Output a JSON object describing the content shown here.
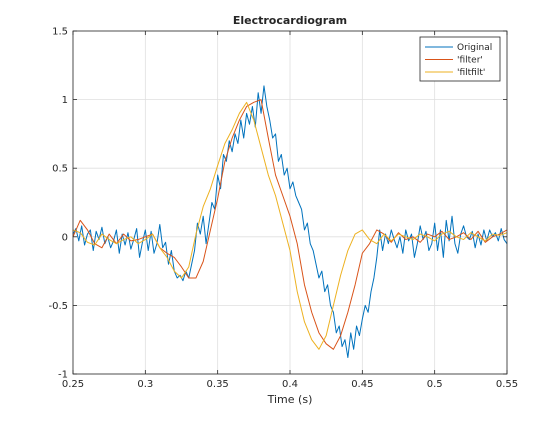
{
  "chart_data": {
    "type": "line",
    "title": "Electrocardiogram",
    "xlabel": "Time (s)",
    "ylabel": "",
    "xlim": [
      0.25,
      0.55
    ],
    "ylim": [
      -1,
      1.5
    ],
    "xticks": [
      0.25,
      0.3,
      0.35,
      0.4,
      0.45,
      0.5,
      0.55
    ],
    "xtick_labels": [
      "0.25",
      "0.3",
      "0.35",
      "0.4",
      "0.45",
      "0.5",
      "0.55"
    ],
    "yticks": [
      -1,
      -0.5,
      0,
      0.5,
      1,
      1.5
    ],
    "ytick_labels": [
      "-1",
      "-0.5",
      "0",
      "0.5",
      "1",
      "1.5"
    ],
    "grid": true,
    "legend_position": "top-right",
    "series": [
      {
        "name": "Original",
        "color": "#0072bd",
        "x": [
          0.25,
          0.252,
          0.254,
          0.256,
          0.258,
          0.26,
          0.262,
          0.264,
          0.266,
          0.268,
          0.27,
          0.272,
          0.274,
          0.276,
          0.278,
          0.28,
          0.282,
          0.284,
          0.286,
          0.288,
          0.29,
          0.292,
          0.294,
          0.296,
          0.298,
          0.3,
          0.302,
          0.304,
          0.306,
          0.308,
          0.31,
          0.312,
          0.314,
          0.316,
          0.318,
          0.32,
          0.322,
          0.324,
          0.326,
          0.328,
          0.33,
          0.332,
          0.334,
          0.336,
          0.338,
          0.34,
          0.342,
          0.344,
          0.346,
          0.348,
          0.35,
          0.352,
          0.354,
          0.356,
          0.358,
          0.36,
          0.362,
          0.364,
          0.366,
          0.368,
          0.37,
          0.372,
          0.374,
          0.376,
          0.378,
          0.38,
          0.382,
          0.384,
          0.386,
          0.388,
          0.39,
          0.392,
          0.394,
          0.396,
          0.398,
          0.4,
          0.402,
          0.404,
          0.406,
          0.408,
          0.41,
          0.412,
          0.414,
          0.416,
          0.418,
          0.42,
          0.422,
          0.424,
          0.426,
          0.428,
          0.43,
          0.432,
          0.434,
          0.436,
          0.438,
          0.44,
          0.442,
          0.444,
          0.446,
          0.448,
          0.45,
          0.452,
          0.454,
          0.456,
          0.458,
          0.46,
          0.462,
          0.464,
          0.466,
          0.468,
          0.47,
          0.472,
          0.474,
          0.476,
          0.478,
          0.48,
          0.482,
          0.484,
          0.486,
          0.488,
          0.49,
          0.492,
          0.494,
          0.496,
          0.498,
          0.5,
          0.502,
          0.504,
          0.506,
          0.508,
          0.51,
          0.512,
          0.514,
          0.516,
          0.518,
          0.52,
          0.522,
          0.524,
          0.526,
          0.528,
          0.53,
          0.532,
          0.534,
          0.536,
          0.538,
          0.54,
          0.542,
          0.544,
          0.546,
          0.548,
          0.55
        ],
        "y": [
          0.02,
          0.06,
          -0.03,
          0.08,
          -0.06,
          0.02,
          0.05,
          -0.1,
          0.04,
          -0.02,
          0.07,
          -0.05,
          0.0,
          -0.08,
          -0.03,
          0.05,
          -0.12,
          0.02,
          -0.06,
          0.03,
          -0.09,
          -0.02,
          0.06,
          -0.15,
          -0.04,
          0.05,
          -0.1,
          0.04,
          -0.12,
          -0.05,
          0.09,
          -0.08,
          -0.04,
          -0.2,
          -0.1,
          -0.25,
          -0.3,
          -0.28,
          -0.32,
          -0.25,
          -0.3,
          -0.2,
          -0.1,
          0.1,
          0.02,
          0.15,
          -0.05,
          0.1,
          0.25,
          0.2,
          0.45,
          0.35,
          0.6,
          0.55,
          0.7,
          0.62,
          0.75,
          0.68,
          0.85,
          0.72,
          0.9,
          0.82,
          0.95,
          0.8,
          1.05,
          0.9,
          1.1,
          0.95,
          0.85,
          0.72,
          0.75,
          0.55,
          0.6,
          0.45,
          0.5,
          0.35,
          0.4,
          0.3,
          0.25,
          0.2,
          0.05,
          0.1,
          -0.05,
          -0.1,
          -0.2,
          -0.3,
          -0.25,
          -0.4,
          -0.35,
          -0.5,
          -0.55,
          -0.7,
          -0.65,
          -0.8,
          -0.75,
          -0.88,
          -0.7,
          -0.82,
          -0.65,
          -0.72,
          -0.6,
          -0.5,
          -0.55,
          -0.4,
          -0.3,
          -0.15,
          0.05,
          -0.1,
          0.02,
          -0.05,
          0.05,
          -0.02,
          -0.08,
          0.0,
          -0.12,
          0.05,
          -0.03,
          0.02,
          -0.15,
          -0.05,
          0.08,
          -0.02,
          0.04,
          -0.1,
          -0.05,
          0.1,
          -0.1,
          0.05,
          -0.15,
          0.12,
          -0.03,
          0.15,
          -0.05,
          -0.12,
          0.02,
          0.08,
          0.0,
          -0.02,
          0.04,
          -0.08,
          0.02,
          -0.06,
          0.05,
          -0.03,
          0.05,
          0.0,
          0.03,
          -0.03,
          0.06,
          -0.02,
          -0.05
        ],
        "values": [
          0.02,
          0.06,
          -0.03,
          0.08,
          -0.06,
          0.02,
          0.05,
          -0.1,
          0.04,
          -0.02,
          0.07,
          -0.05,
          0.0,
          -0.08,
          -0.03,
          0.05,
          -0.12,
          0.02,
          -0.06,
          0.03,
          -0.09,
          -0.02,
          0.06,
          -0.15,
          -0.04,
          0.05,
          -0.1,
          0.04,
          -0.12,
          -0.05,
          0.09,
          -0.08,
          -0.04,
          -0.2,
          -0.1,
          -0.25,
          -0.3,
          -0.28,
          -0.32,
          -0.25,
          -0.3,
          -0.2,
          -0.1,
          0.1,
          0.02,
          0.15,
          -0.05,
          0.1,
          0.25,
          0.2,
          0.45,
          0.35,
          0.6,
          0.55,
          0.7,
          0.62,
          0.75,
          0.68,
          0.85,
          0.72,
          0.9,
          0.82,
          0.95,
          0.8,
          1.05,
          0.9,
          1.1,
          0.95,
          0.85,
          0.72,
          0.75,
          0.55,
          0.6,
          0.45,
          0.5,
          0.35,
          0.4,
          0.3,
          0.25,
          0.2,
          0.05,
          0.1,
          -0.05,
          -0.1,
          -0.2,
          -0.3,
          -0.25,
          -0.4,
          -0.35,
          -0.5,
          -0.55,
          -0.7,
          -0.65,
          -0.8,
          -0.75,
          -0.88,
          -0.7,
          -0.82,
          -0.65,
          -0.72,
          -0.6,
          -0.5,
          -0.55,
          -0.4,
          -0.3,
          -0.15,
          0.05,
          -0.1,
          0.02,
          -0.05,
          0.05,
          -0.02,
          -0.08,
          0.0,
          -0.12,
          0.05,
          -0.03,
          0.02,
          -0.15,
          -0.05,
          0.08,
          -0.02,
          0.04,
          -0.1,
          -0.05,
          0.1,
          -0.1,
          0.05,
          -0.15,
          0.12,
          -0.03,
          0.15,
          -0.05,
          -0.12,
          0.02,
          0.08,
          0.0,
          -0.02,
          0.04,
          -0.08,
          0.02,
          -0.06,
          0.05,
          -0.03,
          0.05,
          0.0,
          0.03,
          -0.03,
          0.06,
          -0.02,
          -0.05
        ]
      },
      {
        "name": "'filter'",
        "color": "#d95319",
        "x": [
          0.25,
          0.255,
          0.26,
          0.265,
          0.27,
          0.275,
          0.28,
          0.285,
          0.29,
          0.295,
          0.3,
          0.305,
          0.31,
          0.315,
          0.32,
          0.325,
          0.33,
          0.335,
          0.34,
          0.345,
          0.35,
          0.355,
          0.36,
          0.365,
          0.37,
          0.375,
          0.38,
          0.385,
          0.39,
          0.395,
          0.4,
          0.405,
          0.41,
          0.415,
          0.42,
          0.425,
          0.43,
          0.435,
          0.44,
          0.445,
          0.45,
          0.455,
          0.46,
          0.465,
          0.47,
          0.475,
          0.48,
          0.485,
          0.49,
          0.495,
          0.5,
          0.505,
          0.51,
          0.515,
          0.52,
          0.525,
          0.53,
          0.535,
          0.54,
          0.545,
          0.55
        ],
        "y": [
          0.0,
          0.12,
          0.05,
          -0.05,
          -0.08,
          0.02,
          -0.05,
          0.02,
          -0.03,
          -0.02,
          0.0,
          0.02,
          -0.08,
          -0.12,
          -0.15,
          -0.22,
          -0.3,
          -0.3,
          -0.18,
          0.05,
          0.28,
          0.55,
          0.72,
          0.85,
          0.95,
          0.98,
          1.0,
          0.72,
          0.45,
          0.3,
          0.15,
          -0.05,
          -0.35,
          -0.55,
          -0.7,
          -0.78,
          -0.82,
          -0.72,
          -0.55,
          -0.35,
          -0.12,
          -0.05,
          0.05,
          0.02,
          -0.04,
          0.03,
          -0.02,
          0.0,
          -0.04,
          0.02,
          0.0,
          0.04,
          -0.02,
          0.0,
          0.03,
          -0.02,
          0.04,
          -0.04,
          0.0,
          0.02,
          0.05
        ],
        "values": [
          0.0,
          0.12,
          0.05,
          -0.05,
          -0.08,
          0.02,
          -0.05,
          0.02,
          -0.03,
          -0.02,
          0.0,
          0.02,
          -0.08,
          -0.12,
          -0.15,
          -0.22,
          -0.3,
          -0.3,
          -0.18,
          0.05,
          0.28,
          0.55,
          0.72,
          0.85,
          0.95,
          0.98,
          1.0,
          0.72,
          0.45,
          0.3,
          0.15,
          -0.05,
          -0.35,
          -0.55,
          -0.7,
          -0.78,
          -0.82,
          -0.72,
          -0.55,
          -0.35,
          -0.12,
          -0.05,
          0.05,
          0.02,
          -0.04,
          0.03,
          -0.02,
          0.0,
          -0.04,
          0.02,
          0.0,
          0.04,
          -0.02,
          0.0,
          0.03,
          -0.02,
          0.04,
          -0.04,
          0.0,
          0.02,
          0.05
        ]
      },
      {
        "name": "'filtfilt'",
        "color": "#edb120",
        "x": [
          0.25,
          0.255,
          0.26,
          0.265,
          0.27,
          0.275,
          0.28,
          0.285,
          0.29,
          0.295,
          0.3,
          0.305,
          0.31,
          0.315,
          0.32,
          0.325,
          0.33,
          0.335,
          0.34,
          0.345,
          0.35,
          0.355,
          0.36,
          0.365,
          0.37,
          0.375,
          0.38,
          0.385,
          0.39,
          0.395,
          0.4,
          0.405,
          0.41,
          0.415,
          0.42,
          0.425,
          0.43,
          0.435,
          0.44,
          0.445,
          0.45,
          0.455,
          0.46,
          0.465,
          0.47,
          0.475,
          0.48,
          0.485,
          0.49,
          0.495,
          0.5,
          0.505,
          0.51,
          0.515,
          0.52,
          0.525,
          0.53,
          0.535,
          0.54,
          0.545,
          0.55
        ],
        "y": [
          0.05,
          0.03,
          -0.04,
          -0.06,
          0.02,
          -0.02,
          -0.05,
          -0.02,
          0.0,
          -0.05,
          -0.02,
          0.02,
          -0.08,
          -0.15,
          -0.25,
          -0.3,
          -0.22,
          0.02,
          0.22,
          0.35,
          0.52,
          0.68,
          0.78,
          0.9,
          0.98,
          0.85,
          0.65,
          0.45,
          0.3,
          0.1,
          -0.1,
          -0.4,
          -0.62,
          -0.75,
          -0.82,
          -0.72,
          -0.5,
          -0.28,
          -0.1,
          0.02,
          0.05,
          -0.02,
          -0.05,
          0.02,
          -0.03,
          0.02,
          0.0,
          -0.02,
          0.02,
          0.0,
          -0.03,
          0.02,
          0.04,
          0.0,
          -0.02,
          0.03,
          0.0,
          -0.03,
          0.02,
          0.01,
          0.03
        ],
        "values": [
          0.05,
          0.03,
          -0.04,
          -0.06,
          0.02,
          -0.02,
          -0.05,
          -0.02,
          0.0,
          -0.05,
          -0.02,
          0.02,
          -0.08,
          -0.15,
          -0.25,
          -0.3,
          -0.22,
          0.02,
          0.22,
          0.35,
          0.52,
          0.68,
          0.78,
          0.9,
          0.98,
          0.85,
          0.65,
          0.45,
          0.3,
          0.1,
          -0.1,
          -0.4,
          -0.62,
          -0.75,
          -0.82,
          -0.72,
          -0.5,
          -0.28,
          -0.1,
          0.02,
          0.05,
          -0.02,
          -0.05,
          0.02,
          -0.03,
          0.02,
          0.0,
          -0.02,
          0.02,
          0.0,
          -0.03,
          0.02,
          0.04,
          0.0,
          -0.02,
          0.03,
          0.0,
          -0.03,
          0.02,
          0.01,
          0.03
        ]
      }
    ]
  }
}
